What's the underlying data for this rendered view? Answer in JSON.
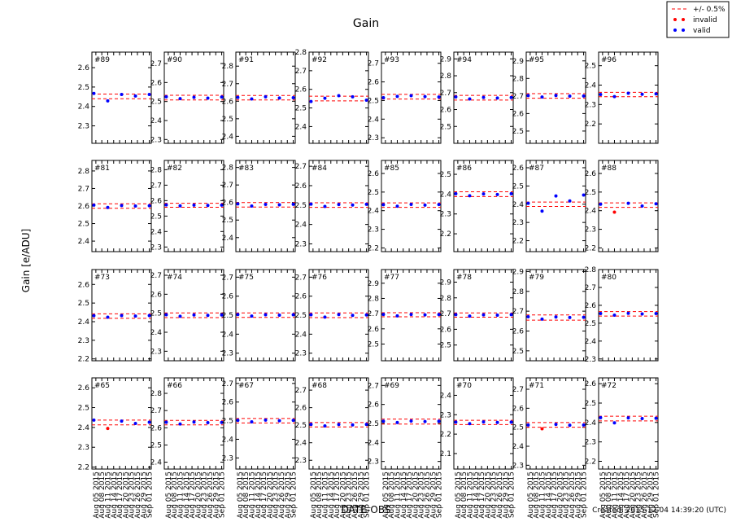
{
  "figure": {
    "title": "Gain",
    "ylabel": "Gain [e/ADU]",
    "xlabel": "DATE-OBS",
    "footer": "Created: 2015-12-04 14:39:20 (UTC)",
    "series": [
      {
        "name": "+/- 0.5%",
        "color": "#ff0000"
      },
      {
        "name": "invalid",
        "color": "#ff0000"
      },
      {
        "name": "valid",
        "color": "#0000ff"
      }
    ],
    "x": [
      "Aug 04 2015",
      "Aug 11 2015",
      "Aug 18 2015",
      "Aug 25 2015",
      "Sep 01 2015"
    ],
    "xlim": [
      "Aug 03 2015",
      "Sep 02 2015"
    ],
    "xticks": [
      "Aug 05 2015",
      "Aug 08 2015",
      "Aug 11 2015",
      "Aug 14 2015",
      "Aug 17 2015",
      "Aug 20 2015",
      "Aug 23 2015",
      "Aug 26 2015",
      "Aug 29 2015",
      "Sep 01 2015"
    ]
  },
  "chart_data": [
    {
      "type": "scatter",
      "title": "#89",
      "ylim": [
        2.21,
        2.68
      ],
      "yticks": [
        2.3,
        2.4,
        2.5,
        2.6
      ],
      "valid": [
        2.467,
        2.429,
        2.462,
        2.454,
        2.462
      ],
      "band": [
        2.44,
        2.464
      ]
    },
    {
      "type": "scatter",
      "title": "#90",
      "ylim": [
        2.28,
        2.76
      ],
      "yticks": [
        2.3,
        2.4,
        2.5,
        2.6,
        2.7
      ],
      "valid": [
        2.525,
        2.515,
        2.522,
        2.518,
        2.524
      ],
      "band": [
        2.508,
        2.533
      ]
    },
    {
      "type": "scatter",
      "title": "#91",
      "ylim": [
        2.36,
        2.88
      ],
      "yticks": [
        2.4,
        2.5,
        2.6,
        2.7,
        2.8
      ],
      "valid": [
        2.622,
        2.613,
        2.625,
        2.618,
        2.62
      ],
      "band": [
        2.607,
        2.633
      ]
    },
    {
      "type": "scatter",
      "title": "#92",
      "ylim": [
        2.31,
        2.8
      ],
      "yticks": [
        2.4,
        2.5,
        2.6,
        2.7,
        2.8
      ],
      "valid": [
        2.535,
        2.552,
        2.566,
        2.56,
        2.542
      ],
      "band": [
        2.538,
        2.563
      ]
    },
    {
      "type": "scatter",
      "title": "#93",
      "ylim": [
        2.27,
        2.76
      ],
      "yticks": [
        2.3,
        2.4,
        2.5,
        2.6,
        2.7
      ],
      "valid": [
        2.515,
        2.522,
        2.526,
        2.521,
        2.519
      ],
      "band": [
        2.508,
        2.533
      ]
    },
    {
      "type": "scatter",
      "title": "#94",
      "ylim": [
        2.4,
        2.94
      ],
      "yticks": [
        2.5,
        2.6,
        2.7,
        2.8,
        2.9
      ],
      "valid": [
        2.675,
        2.663,
        2.672,
        2.668,
        2.671
      ],
      "band": [
        2.656,
        2.684
      ]
    },
    {
      "type": "scatter",
      "title": "#95",
      "ylim": [
        2.43,
        2.95
      ],
      "yticks": [
        2.5,
        2.6,
        2.7,
        2.8,
        2.9
      ],
      "valid": [
        2.702,
        2.694,
        2.703,
        2.699,
        2.7
      ],
      "band": [
        2.687,
        2.713
      ]
    },
    {
      "type": "scatter",
      "title": "#96",
      "ylim": [
        2.1,
        2.57
      ],
      "yticks": [
        2.2,
        2.3,
        2.4,
        2.5
      ],
      "valid": [
        2.352,
        2.341,
        2.358,
        2.353,
        2.355
      ],
      "band": [
        2.34,
        2.363
      ]
    },
    {
      "type": "scatter",
      "title": "#81",
      "ylim": [
        2.34,
        2.86
      ],
      "yticks": [
        2.4,
        2.5,
        2.6,
        2.7,
        2.8
      ],
      "valid": [
        2.605,
        2.592,
        2.603,
        2.6,
        2.602
      ],
      "band": [
        2.587,
        2.613
      ]
    },
    {
      "type": "scatter",
      "title": "#82",
      "ylim": [
        2.27,
        2.86
      ],
      "yticks": [
        2.3,
        2.4,
        2.5,
        2.6,
        2.7,
        2.8
      ],
      "valid": [
        2.572,
        2.566,
        2.571,
        2.569,
        2.571
      ],
      "band": [
        2.557,
        2.583
      ]
    },
    {
      "type": "scatter",
      "title": "#83",
      "ylim": [
        2.32,
        2.84
      ],
      "yticks": [
        2.4,
        2.5,
        2.6,
        2.7,
        2.8
      ],
      "valid": [
        2.592,
        2.58,
        2.589,
        2.587,
        2.59
      ],
      "band": [
        2.574,
        2.6
      ]
    },
    {
      "type": "scatter",
      "title": "#84",
      "ylim": [
        2.26,
        2.73
      ],
      "yticks": [
        2.3,
        2.4,
        2.5,
        2.6,
        2.7
      ],
      "valid": [
        2.505,
        2.493,
        2.503,
        2.5,
        2.504
      ],
      "band": [
        2.488,
        2.512
      ]
    },
    {
      "type": "scatter",
      "title": "#85",
      "ylim": [
        2.18,
        2.67
      ],
      "yticks": [
        2.2,
        2.3,
        2.4,
        2.5,
        2.6
      ],
      "valid": [
        2.432,
        2.424,
        2.434,
        2.43,
        2.433
      ],
      "band": [
        2.418,
        2.442
      ]
    },
    {
      "type": "scatter",
      "title": "#86",
      "ylim": [
        2.11,
        2.57
      ],
      "yticks": [
        2.2,
        2.3,
        2.4,
        2.5
      ],
      "valid": [
        2.402,
        2.392,
        2.401,
        2.398,
        2.402
      ],
      "band": [
        2.388,
        2.412
      ]
    },
    {
      "type": "scatter",
      "title": "#87",
      "ylim": [
        2.14,
        2.64
      ],
      "yticks": [
        2.2,
        2.3,
        2.4,
        2.5,
        2.6
      ],
      "valid": [
        2.405,
        2.362,
        2.445,
        2.418,
        2.45
      ],
      "band": [
        2.388,
        2.412
      ]
    },
    {
      "type": "scatter",
      "title": "#88",
      "ylim": [
        2.18,
        2.67
      ],
      "yticks": [
        2.2,
        2.3,
        2.4,
        2.5,
        2.6
      ],
      "valid": [
        2.435,
        null,
        2.44,
        2.425,
        2.437
      ],
      "invalid": [
        null,
        2.392,
        null,
        null,
        null
      ],
      "band": [
        2.418,
        2.442
      ]
    },
    {
      "type": "scatter",
      "title": "#73",
      "ylim": [
        2.19,
        2.68
      ],
      "yticks": [
        2.2,
        2.3,
        2.4,
        2.5,
        2.6
      ],
      "valid": [
        2.432,
        2.424,
        2.433,
        2.43,
        2.433
      ],
      "band": [
        2.418,
        2.442
      ]
    },
    {
      "type": "scatter",
      "title": "#74",
      "ylim": [
        2.25,
        2.73
      ],
      "yticks": [
        2.3,
        2.4,
        2.5,
        2.6,
        2.7
      ],
      "valid": [
        2.492,
        2.484,
        2.491,
        2.489,
        2.491
      ],
      "band": [
        2.477,
        2.502
      ]
    },
    {
      "type": "scatter",
      "title": "#75",
      "ylim": [
        2.26,
        2.74
      ],
      "yticks": [
        2.3,
        2.4,
        2.5,
        2.6,
        2.7
      ],
      "valid": [
        2.503,
        2.495,
        2.502,
        2.5,
        2.502
      ],
      "band": [
        2.488,
        2.512
      ]
    },
    {
      "type": "scatter",
      "title": "#76",
      "ylim": [
        2.26,
        2.74
      ],
      "yticks": [
        2.3,
        2.4,
        2.5,
        2.6,
        2.7
      ],
      "valid": [
        2.502,
        2.49,
        2.503,
        2.499,
        2.501
      ],
      "band": [
        2.487,
        2.512
      ]
    },
    {
      "type": "scatter",
      "title": "#77",
      "ylim": [
        2.39,
        2.99
      ],
      "yticks": [
        2.5,
        2.6,
        2.7,
        2.8,
        2.9
      ],
      "valid": [
        2.695,
        2.685,
        2.695,
        2.692,
        2.694
      ],
      "band": [
        2.679,
        2.706
      ]
    },
    {
      "type": "scatter",
      "title": "#78",
      "ylim": [
        2.4,
        2.98
      ],
      "yticks": [
        2.5,
        2.6,
        2.7,
        2.8,
        2.9
      ],
      "valid": [
        2.693,
        2.684,
        2.692,
        2.69,
        2.693
      ],
      "band": [
        2.677,
        2.704
      ]
    },
    {
      "type": "scatter",
      "title": "#79",
      "ylim": [
        2.45,
        2.91
      ],
      "yticks": [
        2.5,
        2.6,
        2.7,
        2.8,
        2.9
      ],
      "valid": [
        2.672,
        2.66,
        2.671,
        2.668,
        2.669
      ],
      "band": [
        2.655,
        2.681
      ]
    },
    {
      "type": "scatter",
      "title": "#80",
      "ylim": [
        2.29,
        2.8
      ],
      "yticks": [
        2.3,
        2.4,
        2.5,
        2.6,
        2.7,
        2.8
      ],
      "valid": [
        2.554,
        2.545,
        2.555,
        2.552,
        2.554
      ],
      "band": [
        2.54,
        2.565
      ]
    },
    {
      "type": "scatter",
      "title": "#65",
      "ylim": [
        2.19,
        2.65
      ],
      "yticks": [
        2.2,
        2.3,
        2.4,
        2.5,
        2.6
      ],
      "valid": [
        2.437,
        null,
        2.432,
        2.42,
        2.426
      ],
      "invalid": [
        null,
        2.395,
        null,
        null,
        null
      ],
      "band": [
        2.413,
        2.437
      ]
    },
    {
      "type": "scatter",
      "title": "#66",
      "ylim": [
        2.36,
        2.89
      ],
      "yticks": [
        2.4,
        2.5,
        2.6,
        2.7,
        2.8
      ],
      "valid": [
        2.632,
        2.622,
        2.633,
        2.63,
        2.631
      ],
      "band": [
        2.617,
        2.643
      ]
    },
    {
      "type": "scatter",
      "title": "#67",
      "ylim": [
        2.24,
        2.73
      ],
      "yticks": [
        2.3,
        2.4,
        2.5,
        2.6,
        2.7
      ],
      "valid": [
        2.502,
        2.494,
        2.503,
        2.5,
        2.502
      ],
      "band": [
        2.488,
        2.512
      ]
    },
    {
      "type": "scatter",
      "title": "#68",
      "ylim": [
        2.25,
        2.77
      ],
      "yticks": [
        2.3,
        2.4,
        2.5,
        2.6,
        2.7
      ],
      "valid": [
        2.505,
        2.496,
        2.504,
        2.502,
        2.505
      ],
      "band": [
        2.49,
        2.515
      ]
    },
    {
      "type": "scatter",
      "title": "#69",
      "ylim": [
        2.26,
        2.74
      ],
      "yticks": [
        2.3,
        2.4,
        2.5,
        2.6,
        2.7
      ],
      "valid": [
        2.512,
        2.505,
        2.513,
        2.51,
        2.512
      ],
      "band": [
        2.497,
        2.523
      ]
    },
    {
      "type": "scatter",
      "title": "#70",
      "ylim": [
        2.02,
        2.49
      ],
      "yticks": [
        2.1,
        2.2,
        2.3,
        2.4
      ],
      "valid": [
        2.262,
        2.254,
        2.263,
        2.26,
        2.262
      ],
      "band": [
        2.249,
        2.271
      ]
    },
    {
      "type": "scatter",
      "title": "#71",
      "ylim": [
        2.28,
        2.76
      ],
      "yticks": [
        2.3,
        2.4,
        2.5,
        2.6,
        2.7
      ],
      "valid": [
        2.512,
        null,
        2.515,
        2.511,
        2.512
      ],
      "invalid": [
        null,
        2.492,
        null,
        null,
        null
      ],
      "band": [
        2.5,
        2.525
      ]
    },
    {
      "type": "scatter",
      "title": "#72",
      "ylim": [
        2.16,
        2.63
      ],
      "yticks": [
        2.2,
        2.3,
        2.4,
        2.5,
        2.6
      ],
      "valid": [
        2.425,
        2.398,
        2.424,
        2.42,
        2.422
      ],
      "band": [
        2.408,
        2.432
      ]
    }
  ]
}
